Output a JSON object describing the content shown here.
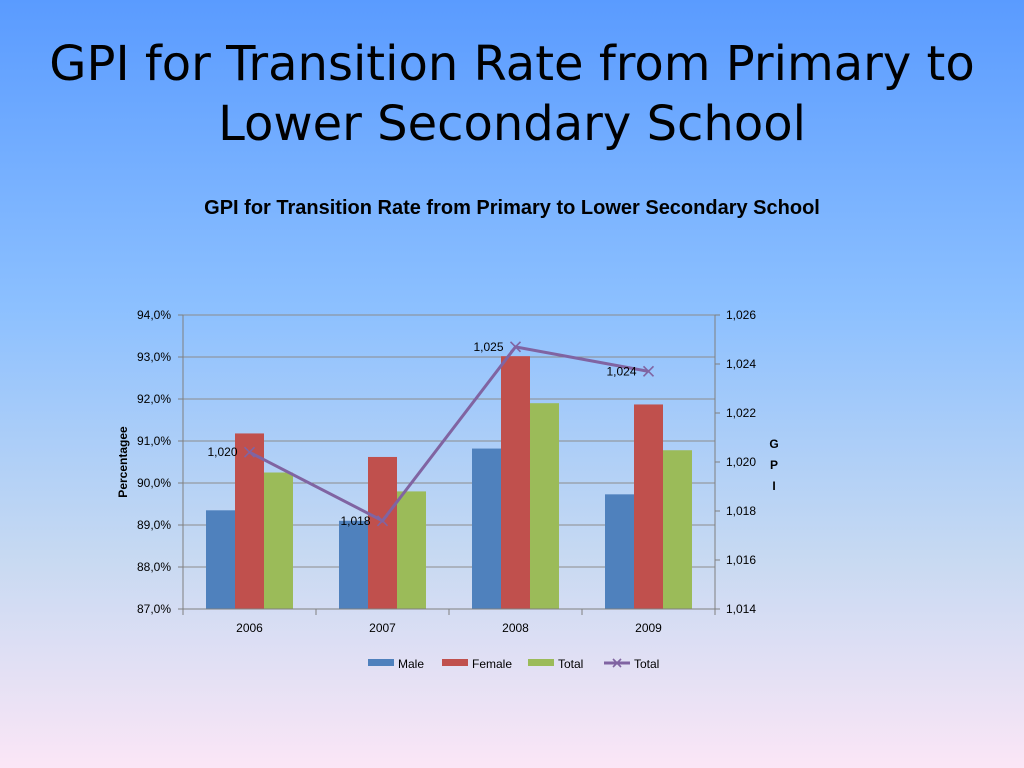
{
  "slide": {
    "title_line1": "GPI for Transition Rate from Primary to",
    "title_line2": "Lower Secondary School"
  },
  "chart_data": {
    "type": "bar",
    "title": "GPI for Transition Rate from Primary to Lower Secondary School",
    "categories": [
      "2006",
      "2007",
      "2008",
      "2009"
    ],
    "series": [
      {
        "name": "Male",
        "axis": "left",
        "color": "#4f81bd",
        "values": [
          89.35,
          89.1,
          90.82,
          89.73
        ]
      },
      {
        "name": "Female",
        "axis": "left",
        "color": "#c0504d",
        "values": [
          91.18,
          90.62,
          93.02,
          91.87
        ]
      },
      {
        "name": "Total",
        "axis": "left",
        "color": "#9bbb59",
        "values": [
          90.25,
          89.8,
          91.9,
          90.78
        ]
      }
    ],
    "line_series": {
      "name": "Total",
      "axis": "right",
      "type": "line",
      "color": "#8064a2",
      "values": [
        1.0204,
        1.0176,
        1.0247,
        1.0237
      ],
      "labels": [
        "1,020",
        "1,018",
        "1,025",
        "1,024"
      ]
    },
    "ylabel": "Percentagee",
    "y2label": "GPI",
    "y2label_letters": [
      "G",
      "P",
      "I"
    ],
    "ylim": [
      87.0,
      94.0
    ],
    "y2lim": [
      1.014,
      1.026
    ],
    "y_ticks": [
      "94,0%",
      "93,0%",
      "92,0%",
      "91,0%",
      "90,0%",
      "89,0%",
      "88,0%",
      "87,0%"
    ],
    "y2_ticks": [
      "1,026",
      "1,024",
      "1,022",
      "1,020",
      "1,018",
      "1,016",
      "1,014"
    ],
    "legend": [
      "Male",
      "Female",
      "Total",
      "Total"
    ],
    "legend_position": "bottom",
    "grid": true
  }
}
